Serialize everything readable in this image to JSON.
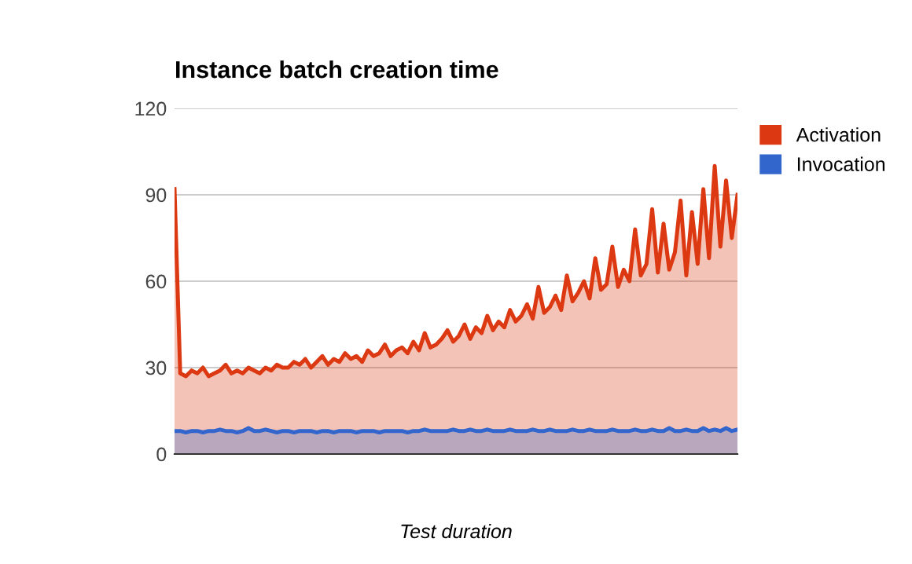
{
  "chart_data": {
    "type": "area",
    "title": "Instance batch creation time",
    "xlabel": "Test duration",
    "categories": [
      null,
      null,
      null,
      null,
      null,
      null,
      null,
      null,
      null,
      null,
      null,
      null,
      null,
      null,
      null,
      null,
      null,
      null,
      null,
      null,
      null,
      null,
      null,
      null,
      null,
      null,
      null,
      null,
      null,
      null,
      null,
      null,
      null,
      null,
      null,
      null,
      null,
      null,
      null,
      null,
      null,
      null,
      null,
      null,
      null,
      null,
      null,
      null,
      null,
      null,
      null,
      null,
      null,
      null,
      null,
      null,
      null,
      null,
      null,
      null,
      null,
      null,
      null,
      null,
      null,
      null,
      null,
      null,
      null,
      null,
      null,
      null,
      null,
      null,
      null,
      null,
      null,
      null,
      null,
      null,
      null,
      null,
      null,
      null,
      null,
      null,
      null,
      null,
      null,
      null,
      null,
      null,
      null,
      null,
      null,
      null,
      null,
      null,
      null,
      null
    ],
    "series": [
      {
        "name": "Activation",
        "color": "#dc3912",
        "values": [
          92,
          28,
          27,
          29,
          28,
          30,
          27,
          28,
          29,
          31,
          28,
          29,
          28,
          30,
          29,
          28,
          30,
          29,
          31,
          30,
          30,
          32,
          31,
          33,
          30,
          32,
          34,
          31,
          33,
          32,
          35,
          33,
          34,
          32,
          36,
          34,
          35,
          38,
          34,
          36,
          37,
          35,
          39,
          36,
          42,
          37,
          38,
          40,
          43,
          39,
          41,
          45,
          40,
          44,
          42,
          48,
          43,
          46,
          44,
          50,
          46,
          48,
          52,
          47,
          58,
          49,
          51,
          55,
          50,
          62,
          53,
          56,
          60,
          54,
          68,
          57,
          59,
          72,
          58,
          64,
          60,
          78,
          62,
          66,
          85,
          63,
          80,
          64,
          70,
          88,
          62,
          84,
          66,
          92,
          68,
          100,
          72,
          95,
          75,
          90
        ]
      },
      {
        "name": "Invocation",
        "color": "#3366cc",
        "values": [
          8,
          8,
          7.5,
          8,
          8,
          7.5,
          8,
          8,
          8.5,
          8,
          8,
          7.5,
          8,
          9,
          8,
          8,
          8.5,
          8,
          7.5,
          8,
          8,
          7.5,
          8,
          8,
          8,
          7.5,
          8,
          8,
          7.5,
          8,
          8,
          8,
          7.5,
          8,
          8,
          8,
          7.5,
          8,
          8,
          8,
          8,
          7.5,
          8,
          8,
          8.5,
          8,
          8,
          8,
          8,
          8.5,
          8,
          8,
          8.5,
          8,
          8,
          8.5,
          8,
          8,
          8,
          8.5,
          8,
          8,
          8,
          8.5,
          8,
          8,
          8.5,
          8,
          8,
          8,
          8.5,
          8,
          8,
          8.5,
          8,
          8,
          8,
          8.5,
          8,
          8,
          8,
          8.5,
          8,
          8,
          8.5,
          8,
          8,
          9,
          8,
          8,
          8.5,
          8,
          8,
          9,
          8,
          8.5,
          8,
          9,
          8,
          8.5
        ]
      }
    ],
    "ylim": [
      0,
      120
    ],
    "yticks": [
      0,
      30,
      60,
      90,
      120
    ],
    "grid": "y",
    "legend": "top right",
    "tick_labels": "y"
  }
}
